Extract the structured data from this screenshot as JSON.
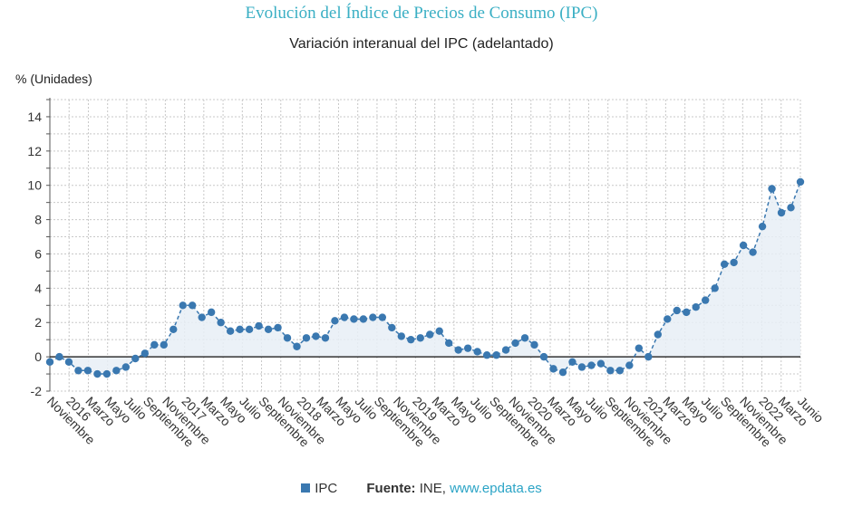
{
  "header": {
    "title": "Evolución del Índice de Precios de Consumo (IPC)",
    "subtitle": "Variación interanual del IPC (adelantado)"
  },
  "colors": {
    "series": "#3a78b0",
    "area": "#e8eef6",
    "title": "#3aafc4",
    "grid": "#c8c8c8",
    "zero_line": "#333333"
  },
  "legend": {
    "series_name": "IPC"
  },
  "source": {
    "label": "Fuente:",
    "text": "INE,",
    "link": "www.epdata.es"
  },
  "chart_data": {
    "type": "area",
    "title": "Variación interanual del IPC (adelantado)",
    "ylabel": "% (Unidades)",
    "xlabel": "",
    "ylim": [
      -2,
      15
    ],
    "yticks": [
      -2,
      0,
      2,
      4,
      6,
      8,
      10,
      12,
      14
    ],
    "grid": true,
    "legend_position": "bottom",
    "x_tick_labels": [
      "Noviembre",
      "2016",
      "Marzo",
      "Mayo",
      "Julio",
      "Septiembre",
      "Noviembre",
      "2017",
      "Marzo",
      "Mayo",
      "Julio",
      "Septiembre",
      "Noviembre",
      "2018",
      "Marzo",
      "Mayo",
      "Julio",
      "Septiembre",
      "Noviembre",
      "2019",
      "Marzo",
      "Mayo",
      "Julio",
      "Septiembre",
      "Noviembre",
      "2020",
      "Marzo",
      "Mayo",
      "Julio",
      "Septiembre",
      "Noviembre",
      "2021",
      "Marzo",
      "Mayo",
      "Julio",
      "Septiembre",
      "Noviembre",
      "2022",
      "Marzo",
      "Junio"
    ],
    "series": [
      {
        "name": "IPC",
        "values": [
          -0.3,
          0.0,
          -0.3,
          -0.8,
          -0.8,
          -1.0,
          -1.0,
          -0.8,
          -0.6,
          -0.1,
          0.2,
          0.7,
          0.7,
          1.6,
          3.0,
          3.0,
          2.3,
          2.6,
          2.0,
          1.5,
          1.6,
          1.6,
          1.8,
          1.6,
          1.7,
          1.1,
          0.6,
          1.1,
          1.2,
          1.1,
          2.1,
          2.3,
          2.2,
          2.2,
          2.3,
          2.3,
          1.7,
          1.2,
          1.0,
          1.1,
          1.3,
          1.5,
          0.8,
          0.4,
          0.5,
          0.3,
          0.1,
          0.1,
          0.4,
          0.8,
          1.1,
          0.7,
          0.0,
          -0.7,
          -0.9,
          -0.3,
          -0.6,
          -0.5,
          -0.4,
          -0.8,
          -0.8,
          -0.5,
          0.5,
          0.0,
          1.3,
          2.2,
          2.7,
          2.6,
          2.9,
          3.3,
          4.0,
          5.4,
          5.5,
          6.5,
          6.1,
          7.6,
          9.8,
          8.4,
          8.7,
          10.2
        ]
      }
    ]
  }
}
